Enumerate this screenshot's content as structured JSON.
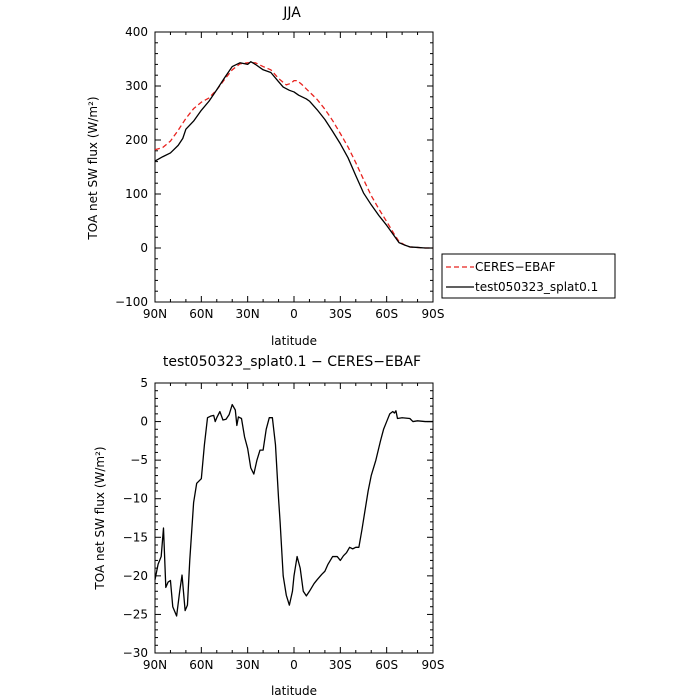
{
  "chart_data": [
    {
      "type": "line",
      "title": "JJA",
      "xlabel": "latitude",
      "ylabel": "TOA net SW flux (W/m²)",
      "xlim": [
        90,
        -90
      ],
      "ylim": [
        -100,
        400
      ],
      "x_ticks": [
        90,
        60,
        30,
        0,
        -30,
        -60,
        -90
      ],
      "x_tick_labels": [
        "90N",
        "60N",
        "30N",
        "0",
        "30S",
        "60S",
        "90S"
      ],
      "y_ticks": [
        -100,
        0,
        100,
        200,
        300,
        400
      ],
      "y_tick_labels": [
        "−100",
        "0",
        "100",
        "200",
        "300",
        "400"
      ],
      "legend_position": "outside-right",
      "series": [
        {
          "name": "CERES−EBAF",
          "color": "#e8231f",
          "dash": "dashed",
          "points": [
            [
              90,
              182
            ],
            [
              85,
              186
            ],
            [
              80,
              198
            ],
            [
              75,
              218
            ],
            [
              70,
              240
            ],
            [
              65,
              258
            ],
            [
              60,
              270
            ],
            [
              55,
              278
            ],
            [
              50,
              293
            ],
            [
              45,
              312
            ],
            [
              40,
              330
            ],
            [
              35,
              341
            ],
            [
              30,
              343
            ],
            [
              25,
              343
            ],
            [
              20,
              336
            ],
            [
              15,
              330
            ],
            [
              10,
              314
            ],
            [
              5,
              302
            ],
            [
              2,
              305
            ],
            [
              0,
              310
            ],
            [
              -2,
              310
            ],
            [
              -5,
              303
            ],
            [
              -10,
              289
            ],
            [
              -15,
              275
            ],
            [
              -20,
              257
            ],
            [
              -25,
              236
            ],
            [
              -30,
              212
            ],
            [
              -35,
              187
            ],
            [
              -40,
              158
            ],
            [
              -45,
              127
            ],
            [
              -50,
              97
            ],
            [
              -55,
              72
            ],
            [
              -60,
              49
            ],
            [
              -65,
              25
            ],
            [
              -68,
              12
            ],
            [
              -72,
              5
            ],
            [
              -75,
              2
            ],
            [
              -80,
              1
            ],
            [
              -85,
              0
            ],
            [
              -90,
              0
            ]
          ]
        },
        {
          "name": "test050323_splat0.1",
          "color": "#000000",
          "dash": "solid",
          "points": [
            [
              90,
              161
            ],
            [
              85,
              169
            ],
            [
              80,
              176
            ],
            [
              75,
              190
            ],
            [
              72,
              203
            ],
            [
              70,
              220
            ],
            [
              65,
              235
            ],
            [
              60,
              255
            ],
            [
              55,
              272
            ],
            [
              50,
              293
            ],
            [
              45,
              315
            ],
            [
              40,
              336
            ],
            [
              35,
              343
            ],
            [
              30,
              340
            ],
            [
              28,
              345
            ],
            [
              25,
              340
            ],
            [
              20,
              330
            ],
            [
              15,
              325
            ],
            [
              10,
              308
            ],
            [
              7,
              298
            ],
            [
              3,
              292
            ],
            [
              0,
              289
            ],
            [
              -3,
              283
            ],
            [
              -8,
              276
            ],
            [
              -10,
              272
            ],
            [
              -15,
              256
            ],
            [
              -20,
              238
            ],
            [
              -25,
              216
            ],
            [
              -30,
              193
            ],
            [
              -35,
              167
            ],
            [
              -40,
              134
            ],
            [
              -45,
              102
            ],
            [
              -50,
              80
            ],
            [
              -55,
              60
            ],
            [
              -60,
              42
            ],
            [
              -65,
              22
            ],
            [
              -68,
              10
            ],
            [
              -72,
              5
            ],
            [
              -75,
              2
            ],
            [
              -80,
              1
            ],
            [
              -85,
              0
            ],
            [
              -90,
              0
            ]
          ]
        }
      ]
    },
    {
      "type": "line",
      "title": "test050323_splat0.1 − CERES−EBAF",
      "xlabel": "latitude",
      "ylabel": "TOA net SW flux (W/m²)",
      "xlim": [
        90,
        -90
      ],
      "ylim": [
        -30,
        5
      ],
      "x_ticks": [
        90,
        60,
        30,
        0,
        -30,
        -60,
        -90
      ],
      "x_tick_labels": [
        "90N",
        "60N",
        "30N",
        "0",
        "30S",
        "60S",
        "90S"
      ],
      "y_ticks": [
        -30,
        -25,
        -20,
        -15,
        -10,
        -5,
        0,
        5
      ],
      "y_tick_labels": [
        "−30",
        "−25",
        "−20",
        "−15",
        "−10",
        "−5",
        "0",
        "5"
      ],
      "series": [
        {
          "name": "",
          "color": "#000000",
          "dash": "solid",
          "points": [
            [
              90,
              -20.5
            ],
            [
              88,
              -18.5
            ],
            [
              86,
              -17.5
            ],
            [
              84.5,
              -13.8
            ],
            [
              83,
              -21.5
            ],
            [
              81.5,
              -20.8
            ],
            [
              80,
              -20.6
            ],
            [
              78.5,
              -24
            ],
            [
              76,
              -25.2
            ],
            [
              74,
              -22
            ],
            [
              72.5,
              -19.9
            ],
            [
              70.5,
              -24.5
            ],
            [
              69,
              -23.8
            ],
            [
              67.5,
              -18
            ],
            [
              65,
              -10.5
            ],
            [
              63,
              -8
            ],
            [
              60,
              -7.4
            ],
            [
              58,
              -3
            ],
            [
              56,
              0.5
            ],
            [
              54,
              0.7
            ],
            [
              52,
              0.8
            ],
            [
              51,
              0
            ],
            [
              50,
              0.5
            ],
            [
              48,
              1.3
            ],
            [
              46,
              0.2
            ],
            [
              44,
              0.3
            ],
            [
              42,
              0.9
            ],
            [
              40,
              2.2
            ],
            [
              38,
              1.5
            ],
            [
              37,
              -0.5
            ],
            [
              36,
              0.6
            ],
            [
              34,
              0.4
            ],
            [
              32,
              -2
            ],
            [
              30,
              -3.5
            ],
            [
              28,
              -6
            ],
            [
              26,
              -6.8
            ],
            [
              24,
              -5
            ],
            [
              22,
              -3.7
            ],
            [
              20,
              -3.7
            ],
            [
              18,
              -1
            ],
            [
              16,
              0.5
            ],
            [
              14,
              0.5
            ],
            [
              12,
              -3
            ],
            [
              10,
              -10
            ],
            [
              9,
              -13
            ],
            [
              7,
              -20
            ],
            [
              5,
              -22.5
            ],
            [
              3,
              -23.8
            ],
            [
              1,
              -22
            ],
            [
              0,
              -20
            ],
            [
              -2,
              -17.5
            ],
            [
              -4,
              -19
            ],
            [
              -6,
              -22
            ],
            [
              -8,
              -22.6
            ],
            [
              -10,
              -22
            ],
            [
              -13,
              -21
            ],
            [
              -15,
              -20.5
            ],
            [
              -18,
              -19.8
            ],
            [
              -20,
              -19.4
            ],
            [
              -22,
              -18.5
            ],
            [
              -25,
              -17.5
            ],
            [
              -28,
              -17.5
            ],
            [
              -30,
              -18
            ],
            [
              -32,
              -17.4
            ],
            [
              -34,
              -17
            ],
            [
              -36,
              -16.3
            ],
            [
              -38,
              -16.5
            ],
            [
              -40,
              -16.3
            ],
            [
              -42,
              -16.3
            ],
            [
              -44,
              -14
            ],
            [
              -46,
              -11.5
            ],
            [
              -48,
              -9
            ],
            [
              -50,
              -7
            ],
            [
              -53,
              -5
            ],
            [
              -56,
              -2.5
            ],
            [
              -58,
              -1
            ],
            [
              -60,
              0
            ],
            [
              -62,
              1
            ],
            [
              -64,
              1.3
            ],
            [
              -65,
              1.1
            ],
            [
              -66,
              1.4
            ],
            [
              -67,
              0.4
            ],
            [
              -70,
              0.5
            ],
            [
              -75,
              0.4
            ],
            [
              -77,
              0
            ],
            [
              -80,
              0.1
            ],
            [
              -85,
              0
            ],
            [
              -90,
              0
            ]
          ]
        }
      ]
    }
  ]
}
